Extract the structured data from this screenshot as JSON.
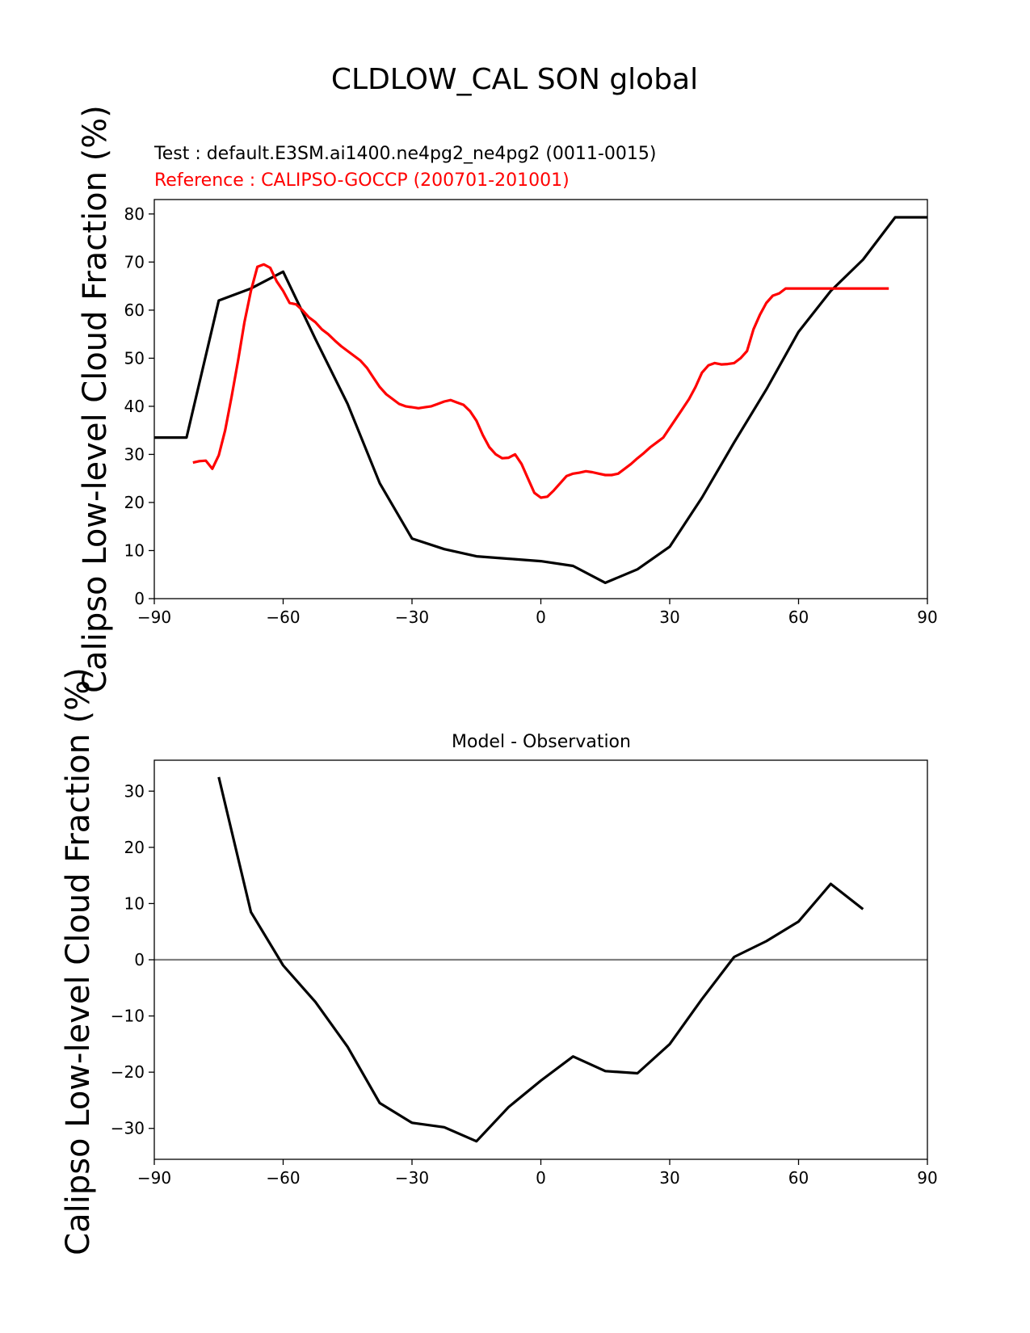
{
  "figure": {
    "suptitle": "CLDLOW_CAL SON global"
  },
  "chart_data": [
    {
      "type": "line",
      "test_label": "Test : default.E3SM.ai1400.ne4pg2_ne4pg2 (0011-0015)",
      "reference_label": "Reference : CALIPSO-GOCCP (200701-201001)",
      "ylabel": "Calipso Low-level Cloud Fraction (%)",
      "xlim": [
        -90,
        90
      ],
      "ylim": [
        0,
        83
      ],
      "xticks": [
        -90,
        -60,
        -30,
        0,
        30,
        60,
        90
      ],
      "xtick_labels": [
        "−90",
        "−60",
        "−30",
        "0",
        "30",
        "60",
        "90"
      ],
      "yticks": [
        0,
        10,
        20,
        30,
        40,
        50,
        60,
        70,
        80
      ],
      "ytick_labels": [
        "0",
        "10",
        "20",
        "30",
        "40",
        "50",
        "60",
        "70",
        "80"
      ],
      "grid": false,
      "series": [
        {
          "color": "#000000",
          "x": [
            -90,
            -82.5,
            -75,
            -67.5,
            -60,
            -52.5,
            -45,
            -37.5,
            -30,
            -22.5,
            -15,
            -7.5,
            0,
            7.5,
            15,
            22.5,
            30,
            37.5,
            45,
            52.5,
            60,
            67.5,
            75,
            82.5,
            90
          ],
          "y": [
            33.5,
            33.5,
            62,
            64.5,
            68,
            54,
            40.5,
            24,
            12.5,
            10.3,
            8.8,
            8.3,
            7.8,
            6.8,
            3.3,
            6.1,
            10.8,
            21,
            32.5,
            43.5,
            55.5,
            64,
            70.5,
            79.3,
            79.3
          ]
        },
        {
          "color": "#ff0000",
          "x": [
            -81,
            -79.5,
            -78,
            -76.5,
            -75,
            -73.5,
            -72,
            -70.5,
            -69,
            -67.5,
            -66,
            -64.5,
            -63,
            -61.5,
            -60,
            -58.5,
            -57,
            -55.5,
            -54,
            -52.5,
            -51,
            -49.5,
            -48,
            -46.5,
            -45,
            -43.5,
            -42,
            -40.5,
            -39,
            -37.5,
            -36,
            -34.5,
            -33,
            -31.5,
            -30,
            -28.5,
            -27,
            -25.5,
            -24,
            -22.5,
            -21,
            -19.5,
            -18,
            -16.5,
            -15,
            -13.5,
            -12,
            -10.5,
            -9,
            -7.5,
            -6,
            -4.5,
            -3,
            -1.5,
            0,
            1.5,
            3,
            4.5,
            6,
            7.5,
            9,
            10.5,
            12,
            13.5,
            15,
            16.5,
            18,
            19.5,
            21,
            22.5,
            24,
            25.5,
            27,
            28.5,
            30,
            31.5,
            33,
            34.5,
            36,
            37.5,
            39,
            40.5,
            42,
            43.5,
            45,
            46.5,
            48,
            49.5,
            51,
            52.5,
            54,
            55.5,
            57,
            58.5,
            60,
            61.5,
            63,
            64.5,
            66,
            67.5,
            69,
            70.5,
            72,
            73.5,
            75,
            76.5,
            78,
            79.5,
            81
          ],
          "y": [
            28.3,
            28.6,
            28.7,
            27.0,
            29.8,
            35.0,
            42.0,
            49.5,
            57.5,
            64.0,
            69.0,
            69.5,
            68.8,
            66.0,
            64.0,
            61.5,
            61.2,
            60.0,
            58.5,
            57.5,
            56.0,
            55.0,
            53.7,
            52.5,
            51.5,
            50.5,
            49.5,
            48.0,
            46.0,
            44.0,
            42.5,
            41.5,
            40.5,
            40.0,
            39.8,
            39.6,
            39.8,
            40.0,
            40.5,
            41.0,
            41.3,
            40.8,
            40.3,
            39.0,
            37.0,
            34.0,
            31.5,
            30.0,
            29.2,
            29.3,
            30.0,
            28.0,
            25.0,
            22.0,
            21.0,
            21.2,
            22.5,
            24.0,
            25.5,
            26.0,
            26.2,
            26.5,
            26.3,
            26.0,
            25.7,
            25.7,
            26.0,
            27.0,
            28.0,
            29.2,
            30.3,
            31.5,
            32.5,
            33.5,
            35.5,
            37.5,
            39.5,
            41.5,
            44.0,
            47.0,
            48.5,
            49.0,
            48.7,
            48.8,
            49.0,
            50.0,
            51.5,
            56.0,
            59.0,
            61.5,
            63.0,
            63.5,
            64.5,
            64.5,
            64.5,
            64.5,
            64.5,
            64.5,
            64.5,
            64.5,
            64.5,
            64.5,
            64.5,
            64.5,
            64.5,
            64.5,
            64.5,
            64.5,
            64.5
          ]
        }
      ]
    },
    {
      "type": "line",
      "title": "Model - Observation",
      "ylabel": "Calipso Low-level Cloud Fraction (%)",
      "xlim": [
        -90,
        90
      ],
      "ylim": [
        -35.5,
        35.5
      ],
      "xticks": [
        -90,
        -60,
        -30,
        0,
        30,
        60,
        90
      ],
      "xtick_labels": [
        "−90",
        "−60",
        "−30",
        "0",
        "30",
        "60",
        "90"
      ],
      "yticks": [
        -30,
        -20,
        -10,
        0,
        10,
        20,
        30
      ],
      "ytick_labels": [
        "−30",
        "−20",
        "−10",
        "0",
        "10",
        "20",
        "30"
      ],
      "grid": false,
      "zero_line_color": "#808080",
      "series": [
        {
          "color": "#000000",
          "x": [
            -75,
            -67.5,
            -60,
            -52.5,
            -45,
            -37.5,
            -30,
            -22.5,
            -15,
            -7.5,
            0,
            7.5,
            15,
            22.5,
            30,
            37.5,
            45,
            52.5,
            60,
            67.5,
            75
          ],
          "y": [
            32.5,
            8.5,
            -1.0,
            -7.5,
            -15.5,
            -25.5,
            -29.0,
            -29.8,
            -32.3,
            -26.2,
            -21.5,
            -17.2,
            -19.8,
            -20.2,
            -15.0,
            -7.0,
            0.5,
            3.3,
            6.8,
            13.5,
            9.0
          ]
        }
      ]
    }
  ]
}
